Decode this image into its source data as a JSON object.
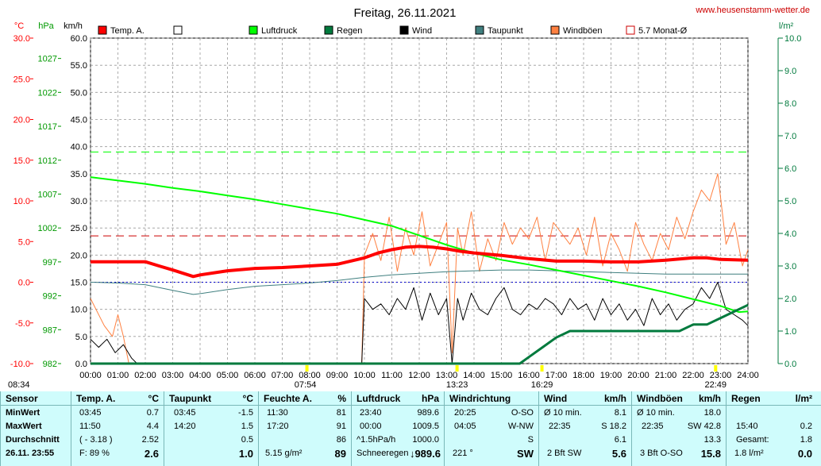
{
  "title": "Freitag, 26.11.2021",
  "site": "www.heusenstamm-wetter.de",
  "units": {
    "temp": "°C",
    "pressure": "hPa",
    "speed": "km/h",
    "rain": "l/m²"
  },
  "legend": [
    {
      "label": "Temp. A.",
      "color": "#ff0000"
    },
    {
      "label": "",
      "color": "#ffffff"
    },
    {
      "label": "Luftdruck",
      "color": "#00ff00"
    },
    {
      "label": "Regen",
      "color": "#007a3d"
    },
    {
      "label": "Wind",
      "color": "#000000"
    },
    {
      "label": "Taupunkt",
      "color": "#3f7f7f"
    },
    {
      "label": "Windböen",
      "color": "#ff8040"
    },
    {
      "label": "5.7 Monat-Ø",
      "color": "#cc0000"
    }
  ],
  "chart_data": {
    "type": "line",
    "x_ticks": [
      "00:00",
      "01:00",
      "02:00",
      "03:00",
      "04:00",
      "05:00",
      "06:00",
      "07:00",
      "08:00",
      "09:00",
      "10:00",
      "11:00",
      "12:00",
      "13:00",
      "14:00",
      "15:00",
      "16:00",
      "17:00",
      "18:00",
      "19:00",
      "20:00",
      "21:00",
      "22:00",
      "23:00",
      "24:00"
    ],
    "temp_ticks": [
      "30.0",
      "25.0",
      "20.0",
      "15.0",
      "10.0",
      "5.0",
      "0.0",
      "-5.0",
      "-10.0"
    ],
    "pressure_ticks": [
      "1027",
      "1022",
      "1017",
      "1012",
      "1007",
      "1002",
      "997",
      "992",
      "987",
      "982"
    ],
    "speed_ticks": [
      "60.0",
      "55.0",
      "50.0",
      "45.0",
      "40.0",
      "35.0",
      "30.0",
      "25.0",
      "20.0",
      "15.0",
      "10.0",
      "5.0",
      "0.0"
    ],
    "rain_ticks": [
      "10.0",
      "9.0",
      "8.0",
      "7.0",
      "6.0",
      "5.0",
      "4.0",
      "3.0",
      "2.0",
      "1.0",
      "0.0"
    ],
    "ylim_temp": [
      -10,
      30
    ],
    "ylim_pressure": [
      982,
      1030
    ],
    "ylim_speed": [
      0,
      60
    ],
    "ylim_rain": [
      0,
      10
    ],
    "markers": [
      {
        "label": "08:34",
        "hour": 0
      },
      {
        "label": "07:54",
        "hour": 7.9
      },
      {
        "label": "13:23",
        "hour": 13.38
      },
      {
        "label": "16:29",
        "hour": 16.48
      },
      {
        "label": "22:49",
        "hour": 22.82
      }
    ],
    "series": [
      {
        "name": "Temp. A.",
        "axis": "temp",
        "color": "#ff0000",
        "x": [
          0,
          1,
          2,
          2.5,
          3,
          3.75,
          4,
          5,
          6,
          7,
          8,
          9,
          10,
          10.5,
          11,
          11.5,
          12,
          12.5,
          13,
          13.5,
          14,
          15,
          16,
          17,
          18,
          19,
          20,
          21,
          22,
          22.5,
          23,
          24
        ],
        "y": [
          2.52,
          2.52,
          2.52,
          2.0,
          1.5,
          0.7,
          0.9,
          1.4,
          1.7,
          1.8,
          2.0,
          2.2,
          3.0,
          3.6,
          4.0,
          4.3,
          4.4,
          4.3,
          4.1,
          3.8,
          3.6,
          3.3,
          2.9,
          2.6,
          2.6,
          2.5,
          2.5,
          2.7,
          3.0,
          3.0,
          2.8,
          2.7
        ]
      },
      {
        "name": "Luftdruck",
        "axis": "pressure",
        "color": "#00ff00",
        "x": [
          0,
          1,
          2,
          3,
          4,
          5,
          6,
          7,
          8,
          9,
          10,
          11,
          12,
          13,
          14,
          15,
          16,
          17,
          18,
          19,
          20,
          21,
          22,
          23,
          23.67,
          24
        ],
        "y": [
          1009.5,
          1009.0,
          1008.5,
          1007.9,
          1007.4,
          1006.8,
          1006.2,
          1005.5,
          1004.8,
          1004.1,
          1003.2,
          1002.3,
          1000.9,
          999.5,
          998.3,
          997.3,
          996.6,
          995.8,
          995.0,
          994.2,
          993.4,
          992.5,
          991.5,
          990.5,
          989.6,
          989.7
        ]
      },
      {
        "name": "Taupunkt",
        "axis": "temp",
        "color": "#3f7f7f",
        "x": [
          0,
          1,
          2,
          3,
          3.75,
          4,
          5,
          6,
          7,
          8,
          9,
          10,
          11,
          12,
          13,
          14,
          15,
          16,
          17,
          18,
          19,
          20,
          21,
          22,
          23,
          24
        ],
        "y": [
          0.0,
          -0.1,
          -0.3,
          -1.0,
          -1.5,
          -1.4,
          -0.9,
          -0.5,
          -0.3,
          -0.1,
          0.2,
          0.6,
          0.9,
          1.1,
          1.3,
          1.4,
          1.5,
          1.5,
          1.4,
          1.3,
          1.2,
          1.1,
          1.0,
          1.0,
          1.0,
          1.0
        ]
      },
      {
        "name": "Regen",
        "axis": "rain",
        "color": "#007a3d",
        "x": [
          0,
          15.67,
          16.0,
          16.5,
          17.0,
          17.5,
          18.0,
          18.5,
          19.0,
          20.0,
          21.0,
          21.5,
          22.0,
          22.5,
          23.0,
          23.5,
          24
        ],
        "y": [
          0,
          0,
          0.2,
          0.5,
          0.8,
          1.0,
          1.0,
          1.0,
          1.0,
          1.0,
          1.0,
          1.0,
          1.2,
          1.2,
          1.4,
          1.6,
          1.8
        ]
      },
      {
        "name": "Wind",
        "axis": "speed",
        "color": "#000000",
        "x": [
          0,
          0.3,
          0.6,
          0.9,
          1.2,
          1.5,
          1.7,
          2,
          9.9,
          10,
          10.3,
          10.6,
          10.9,
          11.2,
          11.5,
          11.8,
          12.1,
          12.4,
          12.7,
          13,
          13.2,
          13.4,
          13.6,
          13.9,
          14.2,
          14.5,
          14.8,
          15.1,
          15.4,
          15.7,
          16,
          16.3,
          16.6,
          16.9,
          17.2,
          17.5,
          17.8,
          18.1,
          18.4,
          18.7,
          19,
          19.3,
          19.6,
          19.9,
          20.2,
          20.5,
          20.8,
          21.1,
          21.4,
          21.7,
          22,
          22.3,
          22.6,
          22.9,
          23.2,
          23.5,
          23.8,
          24
        ],
        "y": [
          4.5,
          3.0,
          4.5,
          2.0,
          3.5,
          1.0,
          0,
          0,
          0,
          12,
          10,
          11,
          9,
          12,
          10,
          14,
          8,
          13,
          9,
          12,
          0,
          12,
          8,
          13,
          10,
          9,
          12,
          14,
          10,
          9,
          11,
          10,
          12,
          11,
          9,
          12,
          10,
          11,
          8,
          12,
          9,
          11,
          8,
          10,
          7,
          12,
          9,
          11,
          8,
          10,
          11,
          14,
          12,
          15,
          10,
          9,
          8,
          7
        ]
      },
      {
        "name": "Windböen",
        "axis": "speed",
        "color": "#ff8040",
        "x": [
          0,
          0.2,
          0.5,
          0.8,
          1.0,
          1.2,
          1.4,
          1.6,
          1.8,
          2,
          9.9,
          10,
          10.3,
          10.6,
          10.9,
          11.2,
          11.5,
          11.8,
          12.1,
          12.4,
          12.7,
          13,
          13.2,
          13.4,
          13.6,
          13.9,
          14.2,
          14.5,
          14.8,
          15.1,
          15.4,
          15.7,
          16,
          16.3,
          16.6,
          16.9,
          17.2,
          17.5,
          17.8,
          18.1,
          18.4,
          18.7,
          19,
          19.3,
          19.6,
          19.9,
          20.2,
          20.5,
          20.8,
          21.1,
          21.4,
          21.7,
          22,
          22.3,
          22.6,
          22.9,
          23.2,
          23.5,
          23.8,
          24
        ],
        "y": [
          12,
          10,
          7,
          5,
          9,
          5,
          0,
          0,
          0,
          0,
          0,
          20,
          24,
          19,
          27,
          17,
          25,
          20,
          28,
          18,
          22,
          26,
          2,
          25,
          20,
          28,
          17,
          23,
          19,
          26,
          22,
          25,
          23,
          27,
          19,
          26,
          24,
          22,
          25,
          20,
          27,
          18,
          24,
          21,
          17,
          26,
          22,
          19,
          24,
          21,
          27,
          23,
          28,
          32,
          30,
          35,
          22,
          26,
          18,
          21
        ]
      }
    ],
    "reference_lines": [
      {
        "name": "5.7 Monat-Ø",
        "axis": "temp",
        "value": 5.7,
        "color": "#cc0000"
      },
      {
        "name": "Luftdruck",
        "axis": "pressure",
        "value": 1013.2,
        "color": "#00ff00"
      },
      {
        "name": "",
        "axis": "speed",
        "value": 15.0,
        "color": "#0000cc"
      }
    ]
  },
  "stats": {
    "sensor": {
      "header": "Sensor",
      "min": "MinWert",
      "max": "MaxWert",
      "avg": "Durchschnitt",
      "date": "26.11. 23:55"
    },
    "temp": {
      "header": "Temp. A.",
      "unit": "°C",
      "min_time": "03:45",
      "min_val": "0.7",
      "max_time": "11:50",
      "max_val": "4.4",
      "avg_paren": "( - 3.18 )",
      "avg_val": "2.52",
      "foot_label": "F: 89 %",
      "foot_val": "2.6"
    },
    "dew": {
      "header": "Taupunkt",
      "unit": "°C",
      "min_time": "03:45",
      "min_val": "-1.5",
      "max_time": "14:20",
      "max_val": "1.5",
      "avg_val": "0.5",
      "foot_val": "1.0"
    },
    "humidity": {
      "header": "Feuchte A.",
      "unit": "%",
      "min_time": "11:30",
      "min_val": "81",
      "max_time": "17:20",
      "max_val": "91",
      "avg_val": "86",
      "foot_label": "5.15 g/m²",
      "foot_val": "89"
    },
    "pressure": {
      "header": "Luftdruck",
      "unit": "hPa",
      "min_time": "23:40",
      "min_val": "989.6",
      "max_time": "00:00",
      "max_val": "1009.5",
      "avg_label": "^1.5hPa/h",
      "avg_val": "1000.0",
      "foot_label": "Schneeregen",
      "foot_val": "↓989.6"
    },
    "wind_dir": {
      "header": "Windrichtung",
      "min_time": "20:25",
      "min_val": "O-SO",
      "max_time": "04:05",
      "max_val": "W-NW",
      "avg_val": "S",
      "foot_label": "221 °",
      "foot_val": "SW"
    },
    "wind": {
      "header": "Wind",
      "unit": "km/h",
      "min_label": "Ø 10 min.",
      "min_val": "8.1",
      "max_time": "22:35",
      "max_val": "S 18.2",
      "avg_val": "6.1",
      "foot_label": "2 Bft SW",
      "foot_val": "5.6"
    },
    "gust": {
      "header": "Windböen",
      "unit": "km/h",
      "min_label": "Ø 10 min.",
      "min_val": "18.0",
      "max_time": "22:35",
      "max_val": "SW 42.8",
      "avg_val": "13.3",
      "foot_label": "3 Bft O-SO",
      "foot_val": "15.8"
    },
    "rain": {
      "header": "Regen",
      "unit": "l/m²",
      "max_time": "15:40",
      "max_val": "0.2",
      "avg_label": "Gesamt:",
      "avg_val": "1.8",
      "foot_label": "1.8 l/m²",
      "foot_val": "0.0"
    }
  }
}
